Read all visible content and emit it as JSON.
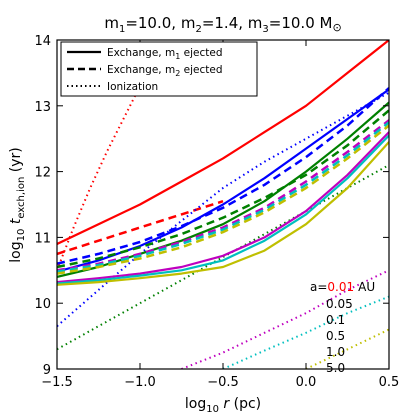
{
  "chart_data": {
    "type": "line",
    "title": "m1=10.0, m2=1.4, m3=10.0 M⊙",
    "title_parts": [
      "m",
      "1",
      "=10.0, m",
      "2",
      "=1.4, m",
      "3",
      "=10.0 M",
      "⊙"
    ],
    "xlabel": "log10 r (pc)",
    "xlabel_parts": [
      "log",
      "10",
      " r",
      " (pc)"
    ],
    "ylabel": "log10 t exch,ion (yr)",
    "ylabel_parts": [
      "log",
      "10",
      " t",
      "exch,ion",
      " (yr)"
    ],
    "xlim": [
      -1.5,
      0.5
    ],
    "ylim": [
      9,
      14
    ],
    "xticks": [
      -1.5,
      -1.0,
      -0.5,
      0.0,
      0.5
    ],
    "xtick_labels": [
      "−1.5",
      "−1.0",
      "−0.5",
      "0.0",
      "0.5"
    ],
    "yticks": [
      9,
      10,
      11,
      12,
      13,
      14
    ],
    "ytick_labels": [
      "9",
      "10",
      "11",
      "12",
      "13",
      "14"
    ],
    "grid": false,
    "legend": {
      "placement": "top-left",
      "entries": [
        {
          "label": "Exchange, m1 ejected",
          "parts": [
            "Exchange, m",
            "1",
            " ejected"
          ],
          "dash": "solid"
        },
        {
          "label": "Exchange, m2 ejected",
          "parts": [
            "Exchange, m",
            "2",
            " ejected"
          ],
          "dash": "dashed"
        },
        {
          "label": "Ionization",
          "parts": [
            "Ionization"
          ],
          "dash": "dotted"
        }
      ]
    },
    "annotation": {
      "prefix": "a=",
      "unit": "AU",
      "items": [
        {
          "label": "0.01",
          "color": "#ff0000"
        },
        {
          "label": "0.05",
          "color": "#0000ff"
        },
        {
          "label": "0.1",
          "color": "#008000"
        },
        {
          "label": "0.5",
          "color": "#bf00bf"
        },
        {
          "label": "1.0",
          "color": "#00bfbf"
        },
        {
          "label": "5.0",
          "color": "#bfbf00"
        }
      ]
    },
    "series": [
      {
        "a": "0.01",
        "kind": "m1 ejected",
        "dash": "solid",
        "color": "#ff0000",
        "x": [
          -1.5,
          -1.25,
          -1.0,
          -0.75,
          -0.5,
          -0.25,
          0.0,
          0.25,
          0.5
        ],
        "y": [
          10.9,
          11.2,
          11.5,
          11.85,
          12.2,
          12.6,
          13.0,
          13.5,
          14.0
        ]
      },
      {
        "a": "0.01",
        "kind": "m2 ejected",
        "dash": "dashed",
        "color": "#ff0000",
        "x": [
          -1.5,
          -1.25,
          -1.0,
          -0.75,
          -0.5
        ],
        "y": [
          10.75,
          10.95,
          11.15,
          11.35,
          11.55
        ]
      },
      {
        "a": "0.01",
        "kind": "ionization",
        "dash": "dotted",
        "color": "#ff0000",
        "x": [
          -1.5,
          -1.4,
          -1.3,
          -1.2,
          -1.1,
          -1.0,
          -0.95,
          -0.9,
          -0.85
        ],
        "y": [
          10.5,
          11.15,
          11.75,
          12.3,
          12.8,
          13.3,
          13.5,
          13.75,
          14.0
        ]
      },
      {
        "a": "0.05",
        "kind": "m1 ejected",
        "dash": "solid",
        "color": "#0000ff",
        "x": [
          -1.5,
          -1.25,
          -1.0,
          -0.75,
          -0.5,
          -0.25,
          0.0,
          0.25,
          0.5
        ],
        "y": [
          10.48,
          10.65,
          10.87,
          11.15,
          11.5,
          11.9,
          12.35,
          12.8,
          13.25
        ]
      },
      {
        "a": "0.05",
        "kind": "m2 ejected",
        "dash": "dashed",
        "color": "#0000ff",
        "x": [
          -1.5,
          -1.25,
          -1.0,
          -0.75,
          -0.5,
          -0.25,
          0.0,
          0.25,
          0.5
        ],
        "y": [
          10.6,
          10.75,
          10.93,
          11.17,
          11.45,
          11.8,
          12.22,
          12.7,
          13.27
        ]
      },
      {
        "a": "0.05",
        "kind": "ionization",
        "dash": "dotted",
        "color": "#0000ff",
        "x": [
          -1.5,
          -1.25,
          -1.0,
          -0.75,
          -0.5,
          -0.25,
          0.0,
          0.25,
          0.5
        ],
        "y": [
          9.65,
          10.2,
          10.75,
          11.25,
          11.75,
          12.15,
          12.5,
          12.85,
          13.2
        ]
      },
      {
        "a": "0.1",
        "kind": "m1 ejected",
        "dash": "solid",
        "color": "#008000",
        "x": [
          -1.5,
          -1.25,
          -1.0,
          -0.75,
          -0.5,
          -0.25,
          0.0,
          0.25,
          0.5
        ],
        "y": [
          10.4,
          10.55,
          10.75,
          10.95,
          11.2,
          11.55,
          12.0,
          12.5,
          13.05
        ]
      },
      {
        "a": "0.1",
        "kind": "m2 ejected",
        "dash": "dashed",
        "color": "#008000",
        "x": [
          -1.5,
          -1.25,
          -1.0,
          -0.75,
          -0.5,
          -0.25,
          0.0,
          0.25,
          0.5
        ],
        "y": [
          10.55,
          10.68,
          10.85,
          11.05,
          11.3,
          11.6,
          11.95,
          12.4,
          12.93
        ]
      },
      {
        "a": "0.1",
        "kind": "ionization",
        "dash": "dotted",
        "color": "#008000",
        "x": [
          -1.5,
          -1.25,
          -1.0,
          -0.75,
          -0.5,
          -0.25,
          0.0,
          0.25,
          0.5
        ],
        "y": [
          9.3,
          9.65,
          10.0,
          10.35,
          10.7,
          11.05,
          11.4,
          11.75,
          12.1
        ]
      },
      {
        "a": "0.5",
        "kind": "m1 ejected",
        "dash": "solid",
        "color": "#bf00bf",
        "x": [
          -1.5,
          -1.25,
          -1.0,
          -0.75,
          -0.5,
          -0.25,
          0.0,
          0.25,
          0.5
        ],
        "y": [
          10.32,
          10.38,
          10.45,
          10.55,
          10.72,
          11.0,
          11.4,
          11.95,
          12.6
        ]
      },
      {
        "a": "0.5",
        "kind": "m2 ejected",
        "dash": "dashed",
        "color": "#bf00bf",
        "x": [
          -1.5,
          -1.25,
          -1.0,
          -0.75,
          -0.5,
          -0.25,
          0.0,
          0.25,
          0.5
        ],
        "y": [
          10.5,
          10.6,
          10.75,
          10.93,
          11.15,
          11.45,
          11.85,
          12.3,
          12.78
        ]
      },
      {
        "a": "0.5",
        "kind": "ionization",
        "dash": "dotted",
        "color": "#bf00bf",
        "x": [
          -0.75,
          -0.5,
          -0.25,
          0.0,
          0.25,
          0.5
        ],
        "y": [
          9.0,
          9.25,
          9.55,
          9.85,
          10.2,
          10.5
        ]
      },
      {
        "a": "1.0",
        "kind": "m1 ejected",
        "dash": "solid",
        "color": "#00bfbf",
        "x": [
          -1.5,
          -1.25,
          -1.0,
          -0.75,
          -0.5,
          -0.25,
          0.0,
          0.25,
          0.5
        ],
        "y": [
          10.3,
          10.35,
          10.42,
          10.5,
          10.65,
          10.95,
          11.35,
          11.9,
          12.55
        ]
      },
      {
        "a": "1.0",
        "kind": "m2 ejected",
        "dash": "dashed",
        "color": "#00bfbf",
        "x": [
          -1.5,
          -1.25,
          -1.0,
          -0.75,
          -0.5,
          -0.25,
          0.0,
          0.25,
          0.5
        ],
        "y": [
          10.48,
          10.58,
          10.72,
          10.9,
          11.12,
          11.42,
          11.8,
          12.25,
          12.75
        ]
      },
      {
        "a": "1.0",
        "kind": "ionization",
        "dash": "dotted",
        "color": "#00bfbf",
        "x": [
          -0.5,
          -0.25,
          0.0,
          0.25,
          0.5
        ],
        "y": [
          9.0,
          9.28,
          9.55,
          9.85,
          10.1
        ]
      },
      {
        "a": "5.0",
        "kind": "m1 ejected",
        "dash": "solid",
        "color": "#bfbf00",
        "x": [
          -1.5,
          -1.25,
          -1.0,
          -0.75,
          -0.5,
          -0.25,
          0.0,
          0.25,
          0.5
        ],
        "y": [
          10.28,
          10.32,
          10.38,
          10.45,
          10.55,
          10.8,
          11.2,
          11.75,
          12.45
        ]
      },
      {
        "a": "5.0",
        "kind": "m2 ejected",
        "dash": "dashed",
        "color": "#bfbf00",
        "x": [
          -1.5,
          -1.25,
          -1.0,
          -0.75,
          -0.5,
          -0.25,
          0.0,
          0.25,
          0.5
        ],
        "y": [
          10.45,
          10.55,
          10.68,
          10.85,
          11.08,
          11.38,
          11.75,
          12.2,
          12.7
        ]
      },
      {
        "a": "5.0",
        "kind": "ionization",
        "dash": "dotted",
        "color": "#bfbf00",
        "x": [
          0.0,
          0.25,
          0.5
        ],
        "y": [
          9.0,
          9.3,
          9.6
        ]
      }
    ]
  }
}
